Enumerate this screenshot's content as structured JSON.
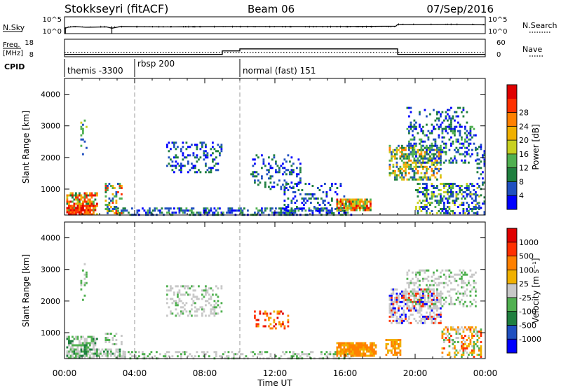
{
  "header": {
    "station": "Stokkseyri (fitACF)",
    "beam": "Beam 06",
    "date": "07/Sep/2016"
  },
  "ctrl_panels": {
    "nsky_label": "N.Sky",
    "nsearch_label": "N.Search",
    "freq_label_1": "Freq.",
    "freq_label_2": "[MHz]",
    "nave_label": "Nave",
    "cpid_label": "CPID",
    "noise_left_ticks": [
      "10^5",
      "10^0"
    ],
    "noise_right_ticks": [
      "10^5",
      "10^0"
    ],
    "freq_left_ticks": [
      "18",
      "8"
    ],
    "nave_right_ticks": [
      "60",
      "0"
    ]
  },
  "chart_data": [
    {
      "type": "line",
      "panel": "noise",
      "x_unit": "hours UT",
      "y_scale": "log",
      "series": [
        {
          "name": "N.Sky",
          "style": "solid",
          "points": [
            [
              0.0,
              1.5
            ],
            [
              0.2,
              1.9
            ],
            [
              0.6,
              2.1
            ],
            [
              1.2,
              1.9
            ],
            [
              2.4,
              2.0
            ],
            [
              2.7,
              1.6
            ],
            [
              3.2,
              2.1
            ],
            [
              6.0,
              2.0
            ],
            [
              9.0,
              2.1
            ],
            [
              12.0,
              2.1
            ],
            [
              16.0,
              2.1
            ],
            [
              18.9,
              2.2
            ],
            [
              19.0,
              2.7
            ],
            [
              22.0,
              2.8
            ],
            [
              24.0,
              2.6
            ]
          ]
        }
      ]
    },
    {
      "type": "line",
      "panel": "frequency-nave",
      "x_unit": "hours UT",
      "series": [
        {
          "name": "Freq. [MHz]",
          "style": "solid",
          "points": [
            [
              0.0,
              8.6
            ],
            [
              9.0,
              8.6
            ],
            [
              9.0,
              11.0
            ],
            [
              10.0,
              11.0
            ],
            [
              10.0,
              12.4
            ],
            [
              19.0,
              12.4
            ],
            [
              19.0,
              8.6
            ],
            [
              24.0,
              8.6
            ]
          ]
        },
        {
          "name": "Nave",
          "style": "dotted",
          "points": [
            [
              0.0,
              15
            ],
            [
              24.0,
              15
            ]
          ]
        }
      ]
    },
    {
      "type": "table",
      "panel": "cpid",
      "segments": [
        {
          "label": "themis -3300",
          "start": 0.0,
          "end": 4.0
        },
        {
          "label": "rbsp 200",
          "start": 4.0,
          "end": 10.0
        },
        {
          "label": "normal (fast) 151",
          "start": 10.0,
          "end": 24.0
        }
      ]
    },
    {
      "type": "heatmap",
      "panel": "power",
      "title": "",
      "xlabel": "",
      "ylabel": "Slant Range [km]",
      "x_range": [
        0,
        24
      ],
      "y_range": [
        180,
        4500
      ],
      "yticks": [
        1000,
        2000,
        3000,
        4000
      ],
      "colorbar": {
        "label": "Power [dB]",
        "ticks": [
          "4",
          "8",
          "12",
          "16",
          "20",
          "24",
          "28"
        ],
        "colors": [
          "#0000ff",
          "#2050c0",
          "#1f7f3f",
          "#50b050",
          "#c8d020",
          "#f0b000",
          "#ff8000",
          "#ff3000",
          "#e00000"
        ]
      },
      "blobs": [
        {
          "x0": 0.1,
          "x1": 1.9,
          "y0": 180,
          "y1": 900,
          "density": 0.65,
          "levels": [
            2,
            3,
            4,
            5,
            6,
            7,
            8
          ]
        },
        {
          "x0": 0.1,
          "x1": 1.6,
          "y0": 180,
          "y1": 500,
          "density": 0.8,
          "levels": [
            6,
            7,
            8
          ]
        },
        {
          "x0": 2.3,
          "x1": 3.3,
          "y0": 180,
          "y1": 1200,
          "density": 0.35,
          "levels": [
            1,
            2,
            3,
            5,
            7
          ]
        },
        {
          "x0": 3.0,
          "x1": 16.5,
          "y0": 180,
          "y1": 420,
          "density": 0.45,
          "levels": [
            0,
            1,
            1,
            2,
            3
          ]
        },
        {
          "x0": 0.9,
          "x1": 1.3,
          "y0": 2000,
          "y1": 3200,
          "density": 0.25,
          "levels": [
            1,
            3,
            4
          ]
        },
        {
          "x0": 5.8,
          "x1": 9.0,
          "y0": 1500,
          "y1": 2500,
          "density": 0.28,
          "levels": [
            0,
            1,
            2
          ]
        },
        {
          "x0": 10.6,
          "x1": 13.5,
          "y0": 1000,
          "y1": 2100,
          "density": 0.25,
          "levels": [
            0,
            1,
            2
          ]
        },
        {
          "x0": 12.5,
          "x1": 16.0,
          "y0": 180,
          "y1": 1200,
          "density": 0.2,
          "levels": [
            0,
            1,
            2
          ]
        },
        {
          "x0": 15.5,
          "x1": 17.5,
          "y0": 300,
          "y1": 700,
          "density": 0.85,
          "levels": [
            2,
            3,
            4,
            5,
            6,
            7,
            8
          ]
        },
        {
          "x0": 18.5,
          "x1": 21.5,
          "y0": 1300,
          "y1": 2400,
          "density": 0.55,
          "levels": [
            1,
            2,
            3,
            4,
            5,
            6
          ]
        },
        {
          "x0": 19.5,
          "x1": 23.5,
          "y0": 1800,
          "y1": 3000,
          "density": 0.3,
          "levels": [
            0,
            1,
            2,
            3
          ]
        },
        {
          "x0": 19.5,
          "x1": 23.0,
          "y0": 2800,
          "y1": 3600,
          "density": 0.2,
          "levels": [
            0,
            1,
            2
          ]
        },
        {
          "x0": 20.0,
          "x1": 23.7,
          "y0": 180,
          "y1": 1200,
          "density": 0.4,
          "levels": [
            0,
            1,
            2,
            3,
            4
          ]
        },
        {
          "x0": 23.5,
          "x1": 24.0,
          "y0": 180,
          "y1": 2500,
          "density": 0.25,
          "levels": [
            0,
            1,
            2
          ]
        }
      ]
    },
    {
      "type": "heatmap",
      "panel": "velocity",
      "title": "",
      "xlabel": "Time UT",
      "ylabel": "Slant Range [km]",
      "x_range": [
        0,
        24
      ],
      "y_range": [
        180,
        4500
      ],
      "xticks": [
        "00:00",
        "04:00",
        "08:00",
        "12:00",
        "16:00",
        "20:00",
        "00:00"
      ],
      "yticks": [
        1000,
        2000,
        3000,
        4000
      ],
      "colorbar": {
        "label": "Velocity [m s⁻¹]",
        "ticks": [
          "1000",
          "500",
          "100",
          "25",
          "-25",
          "-100",
          "-500",
          "-1000"
        ],
        "colors": [
          "#0000ff",
          "#2050c0",
          "#1f7f3f",
          "#50b050",
          "#c8c8c8",
          "#f0b000",
          "#ff8000",
          "#ff3000",
          "#e00000"
        ]
      },
      "blobs": [
        {
          "x0": 0.1,
          "x1": 1.9,
          "y0": 180,
          "y1": 900,
          "density": 0.65,
          "levels": [
            2,
            3,
            3,
            4,
            4
          ]
        },
        {
          "x0": 0.1,
          "x1": 3.5,
          "y0": 180,
          "y1": 500,
          "density": 0.55,
          "levels": [
            2,
            3,
            4,
            4
          ]
        },
        {
          "x0": 3.0,
          "x1": 16.5,
          "y0": 180,
          "y1": 420,
          "density": 0.35,
          "levels": [
            3,
            4,
            4
          ]
        },
        {
          "x0": 2.3,
          "x1": 3.3,
          "y0": 600,
          "y1": 1000,
          "density": 0.35,
          "levels": [
            4,
            4,
            3
          ]
        },
        {
          "x0": 0.9,
          "x1": 1.3,
          "y0": 2000,
          "y1": 3200,
          "density": 0.25,
          "levels": [
            3,
            4
          ]
        },
        {
          "x0": 5.8,
          "x1": 9.0,
          "y0": 1500,
          "y1": 2500,
          "density": 0.3,
          "levels": [
            4,
            4,
            4,
            3
          ]
        },
        {
          "x0": 10.8,
          "x1": 12.8,
          "y0": 1100,
          "y1": 1700,
          "density": 0.3,
          "levels": [
            5,
            6,
            7,
            8
          ]
        },
        {
          "x0": 15.5,
          "x1": 17.8,
          "y0": 250,
          "y1": 700,
          "density": 0.85,
          "levels": [
            5,
            6,
            6
          ]
        },
        {
          "x0": 18.3,
          "x1": 19.2,
          "y0": 300,
          "y1": 800,
          "density": 0.6,
          "levels": [
            5,
            6
          ]
        },
        {
          "x0": 18.5,
          "x1": 21.5,
          "y0": 1300,
          "y1": 2400,
          "density": 0.55,
          "levels": [
            4,
            4,
            4,
            0,
            7
          ]
        },
        {
          "x0": 19.5,
          "x1": 23.5,
          "y0": 1800,
          "y1": 3000,
          "density": 0.3,
          "levels": [
            4,
            4,
            3
          ]
        },
        {
          "x0": 21.5,
          "x1": 23.8,
          "y0": 200,
          "y1": 1200,
          "density": 0.45,
          "levels": [
            3,
            4,
            5,
            6,
            7
          ]
        }
      ]
    }
  ],
  "colors": {
    "frame": "#000000",
    "dashed_marker": "#999999",
    "background": "#ffffff"
  }
}
